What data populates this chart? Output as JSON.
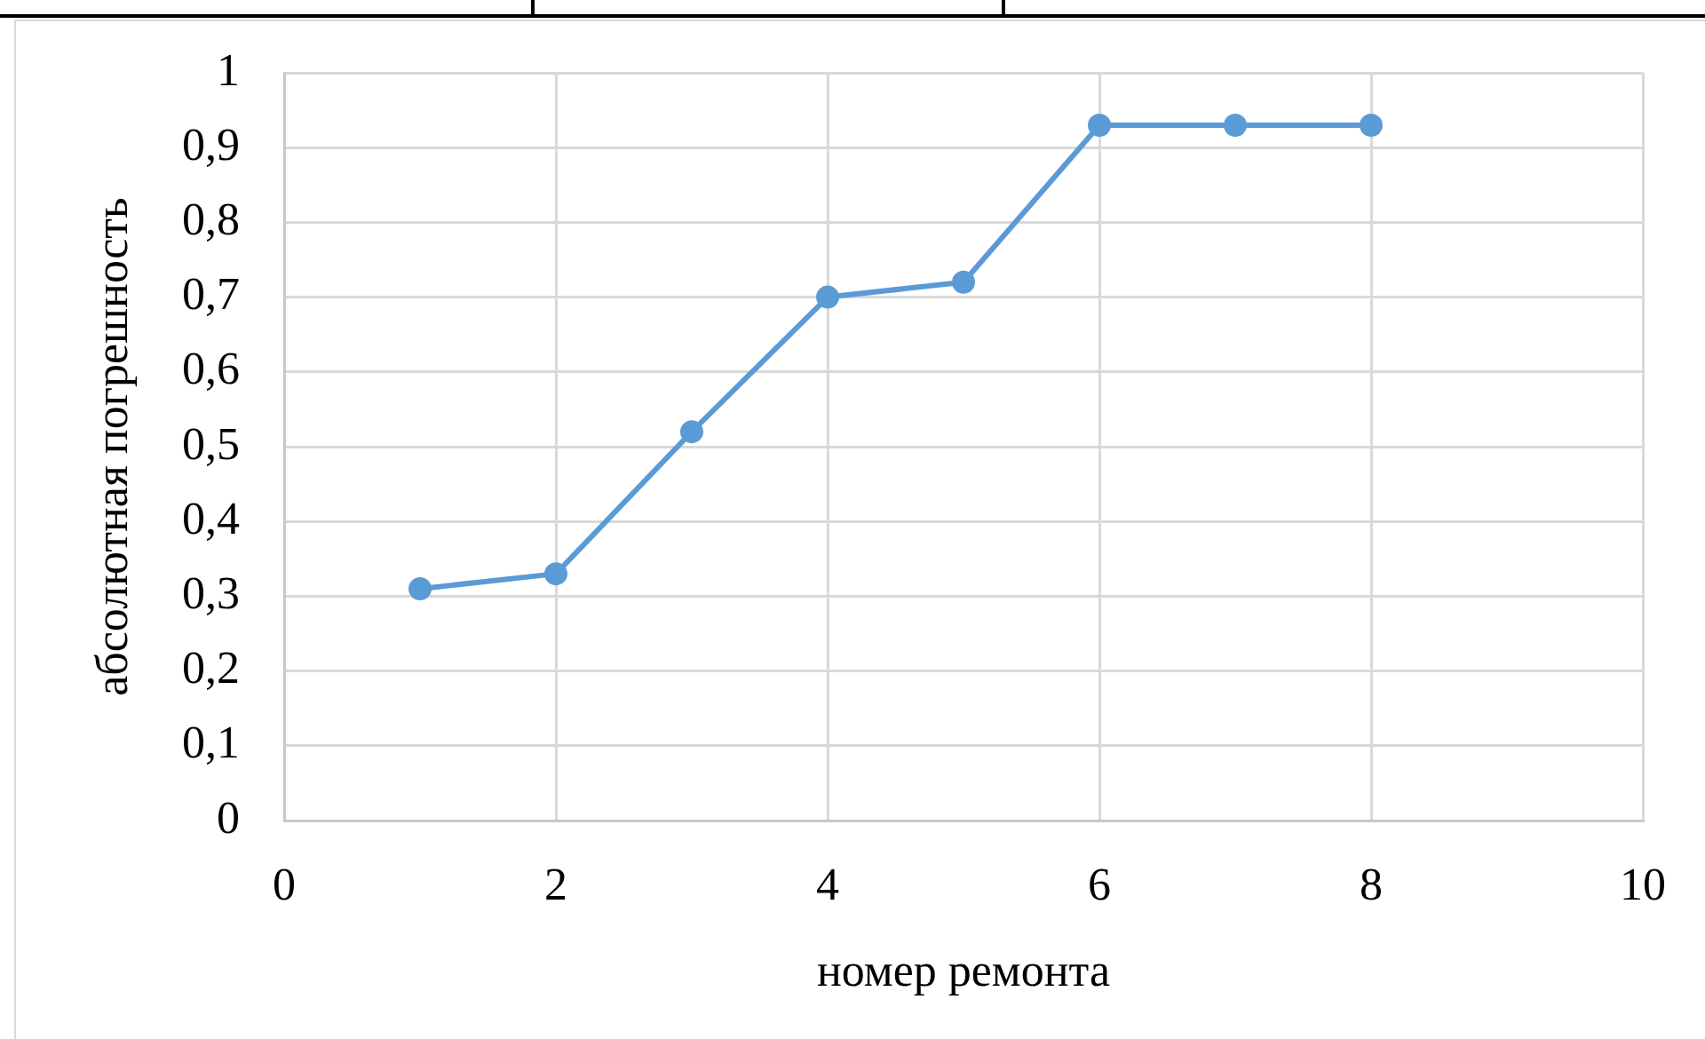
{
  "chart_data": {
    "type": "line",
    "xlabel": "номер ремонта",
    "ylabel": "абсолютная погрешность",
    "x": [
      1,
      2,
      3,
      4,
      5,
      6,
      7,
      8
    ],
    "values": [
      0.31,
      0.33,
      0.52,
      0.7,
      0.72,
      0.93,
      0.93,
      0.93
    ],
    "color": "#5b9bd5",
    "xlim": [
      0,
      10
    ],
    "xticks": [
      0,
      2,
      4,
      6,
      8,
      10
    ],
    "ylim": [
      0,
      1
    ],
    "yticks": [
      0,
      {
        "value": 0.1,
        "label": "0,1"
      },
      {
        "value": 0.2,
        "label": "0,2"
      },
      {
        "value": 0.3,
        "label": "0,3"
      },
      {
        "value": 0.4,
        "label": "0,4"
      },
      {
        "value": 0.5,
        "label": "0,5"
      },
      {
        "value": 0.6,
        "label": "0,6"
      },
      {
        "value": 0.7,
        "label": "0,7"
      },
      {
        "value": 0.8,
        "label": "0,8"
      },
      {
        "value": 0.9,
        "label": "0,9"
      },
      1
    ],
    "grid": true,
    "marker": "circle",
    "line_style": "solid"
  }
}
